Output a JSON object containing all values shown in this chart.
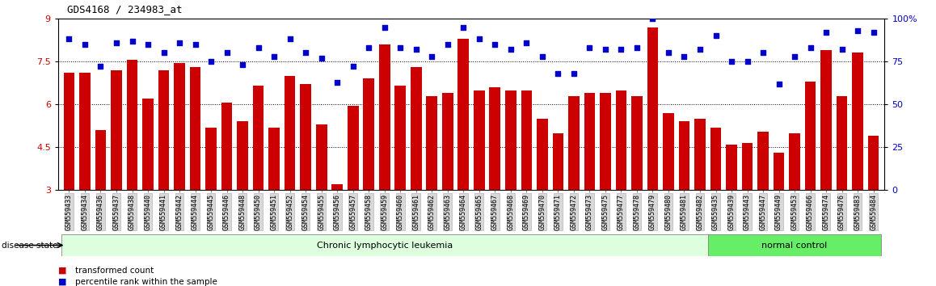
{
  "title": "GDS4168 / 234983_at",
  "samples": [
    "GSM559433",
    "GSM559434",
    "GSM559436",
    "GSM559437",
    "GSM559438",
    "GSM559440",
    "GSM559441",
    "GSM559442",
    "GSM559444",
    "GSM559445",
    "GSM559446",
    "GSM559448",
    "GSM559450",
    "GSM559451",
    "GSM559452",
    "GSM559454",
    "GSM559455",
    "GSM559456",
    "GSM559457",
    "GSM559458",
    "GSM559459",
    "GSM559460",
    "GSM559461",
    "GSM559462",
    "GSM559463",
    "GSM559464",
    "GSM559465",
    "GSM559467",
    "GSM559468",
    "GSM559469",
    "GSM559470",
    "GSM559471",
    "GSM559472",
    "GSM559473",
    "GSM559475",
    "GSM559477",
    "GSM559478",
    "GSM559479",
    "GSM559480",
    "GSM559481",
    "GSM559482",
    "GSM559435",
    "GSM559439",
    "GSM559443",
    "GSM559447",
    "GSM559449",
    "GSM559453",
    "GSM559466",
    "GSM559474",
    "GSM559476",
    "GSM559483",
    "GSM559484"
  ],
  "bar_values": [
    7.1,
    7.1,
    5.1,
    7.2,
    7.55,
    6.2,
    7.2,
    7.45,
    7.3,
    5.2,
    6.05,
    5.4,
    6.65,
    5.2,
    7.0,
    6.7,
    5.3,
    3.2,
    5.95,
    6.9,
    8.1,
    6.65,
    7.3,
    6.3,
    6.4,
    8.3,
    6.5,
    6.6,
    6.5,
    6.5,
    5.5,
    5.0,
    6.3,
    6.4,
    6.4,
    6.5,
    6.3,
    8.7,
    5.7,
    5.4,
    5.5,
    5.2,
    4.6,
    4.65,
    5.05,
    4.3,
    5.0,
    6.8,
    7.9,
    6.3,
    7.8,
    4.9
  ],
  "percentile_values": [
    88,
    85,
    72,
    86,
    87,
    85,
    80,
    86,
    85,
    75,
    80,
    73,
    83,
    78,
    88,
    80,
    77,
    63,
    72,
    83,
    95,
    83,
    82,
    78,
    85,
    95,
    88,
    85,
    82,
    86,
    78,
    68,
    68,
    83,
    82,
    82,
    83,
    100,
    80,
    78,
    82,
    90,
    75,
    75,
    80,
    62,
    78,
    83,
    92,
    82,
    93,
    92
  ],
  "group_labels": [
    "Chronic lymphocytic leukemia",
    "normal control"
  ],
  "group_boundary": 41,
  "group_colors": [
    "#ddffdd",
    "#66ee66"
  ],
  "bar_color": "#cc0000",
  "percentile_color": "#0000cc",
  "left_ylim": [
    3.0,
    9.0
  ],
  "left_yticks": [
    3.0,
    4.5,
    6.0,
    7.5,
    9.0
  ],
  "left_ytick_labels": [
    "3",
    "4.5",
    "6",
    "7.5",
    "9"
  ],
  "right_ylim": [
    0,
    100
  ],
  "right_yticks": [
    0,
    25,
    50,
    75,
    100
  ],
  "right_ytick_labels": [
    "0",
    "25",
    "50",
    "75",
    "100%"
  ],
  "grid_values": [
    4.5,
    6.0,
    7.5
  ],
  "bg_color": "#ffffff",
  "tick_label_bg": "#d8d8d8"
}
